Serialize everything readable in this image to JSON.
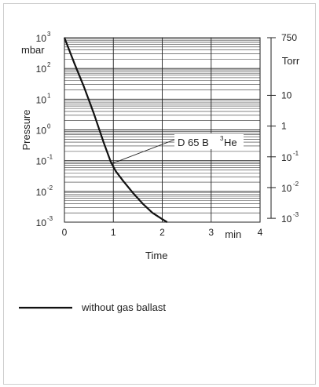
{
  "chart_data": {
    "type": "line",
    "title": "",
    "xlabel": "Time",
    "x_unit": "min",
    "ylabel": "Pressure",
    "y_unit": "mbar",
    "y_scale": "log",
    "xlim": [
      0,
      4
    ],
    "ylim": [
      0.001,
      1000
    ],
    "x_ticks": [
      "0",
      "1",
      "2",
      "3",
      "4"
    ],
    "y_ticks": [
      {
        "base": "10",
        "exp": "3"
      },
      {
        "base": "10",
        "exp": "2"
      },
      {
        "base": "10",
        "exp": "1"
      },
      {
        "base": "10",
        "exp": "0"
      },
      {
        "base": "10",
        "exp": "-1"
      },
      {
        "base": "10",
        "exp": "-2"
      },
      {
        "base": "10",
        "exp": "-3"
      }
    ],
    "right_axis": {
      "unit": "Torr",
      "ticks": [
        {
          "label": "750",
          "value": 1000
        },
        {
          "label": "10",
          "value": 13.33
        },
        {
          "label": "1",
          "value": 1.333
        },
        {
          "base": "10",
          "exp": "-1",
          "value": 0.1333
        },
        {
          "base": "10",
          "exp": "-2",
          "value": 0.01333
        },
        {
          "base": "10",
          "exp": "-3",
          "value": 0.001333
        }
      ]
    },
    "grid": true,
    "series": [
      {
        "name": "without gas ballast",
        "x": [
          0,
          0.2,
          0.4,
          0.6,
          0.8,
          0.95,
          1.05,
          1.2,
          1.4,
          1.6,
          1.8,
          2.0,
          2.1
        ],
        "y": [
          1000,
          150,
          25,
          3.5,
          0.4,
          0.09,
          0.045,
          0.022,
          0.009,
          0.004,
          0.002,
          0.00125,
          0.001
        ]
      }
    ],
    "annotation": {
      "text_main": "D 65 B ",
      "text_sup": "3",
      "text_tail": "He",
      "points_to": {
        "x": 0.97,
        "y": 0.08
      }
    },
    "legend": {
      "placement": "bottom-left",
      "label": "without gas ballast"
    }
  }
}
